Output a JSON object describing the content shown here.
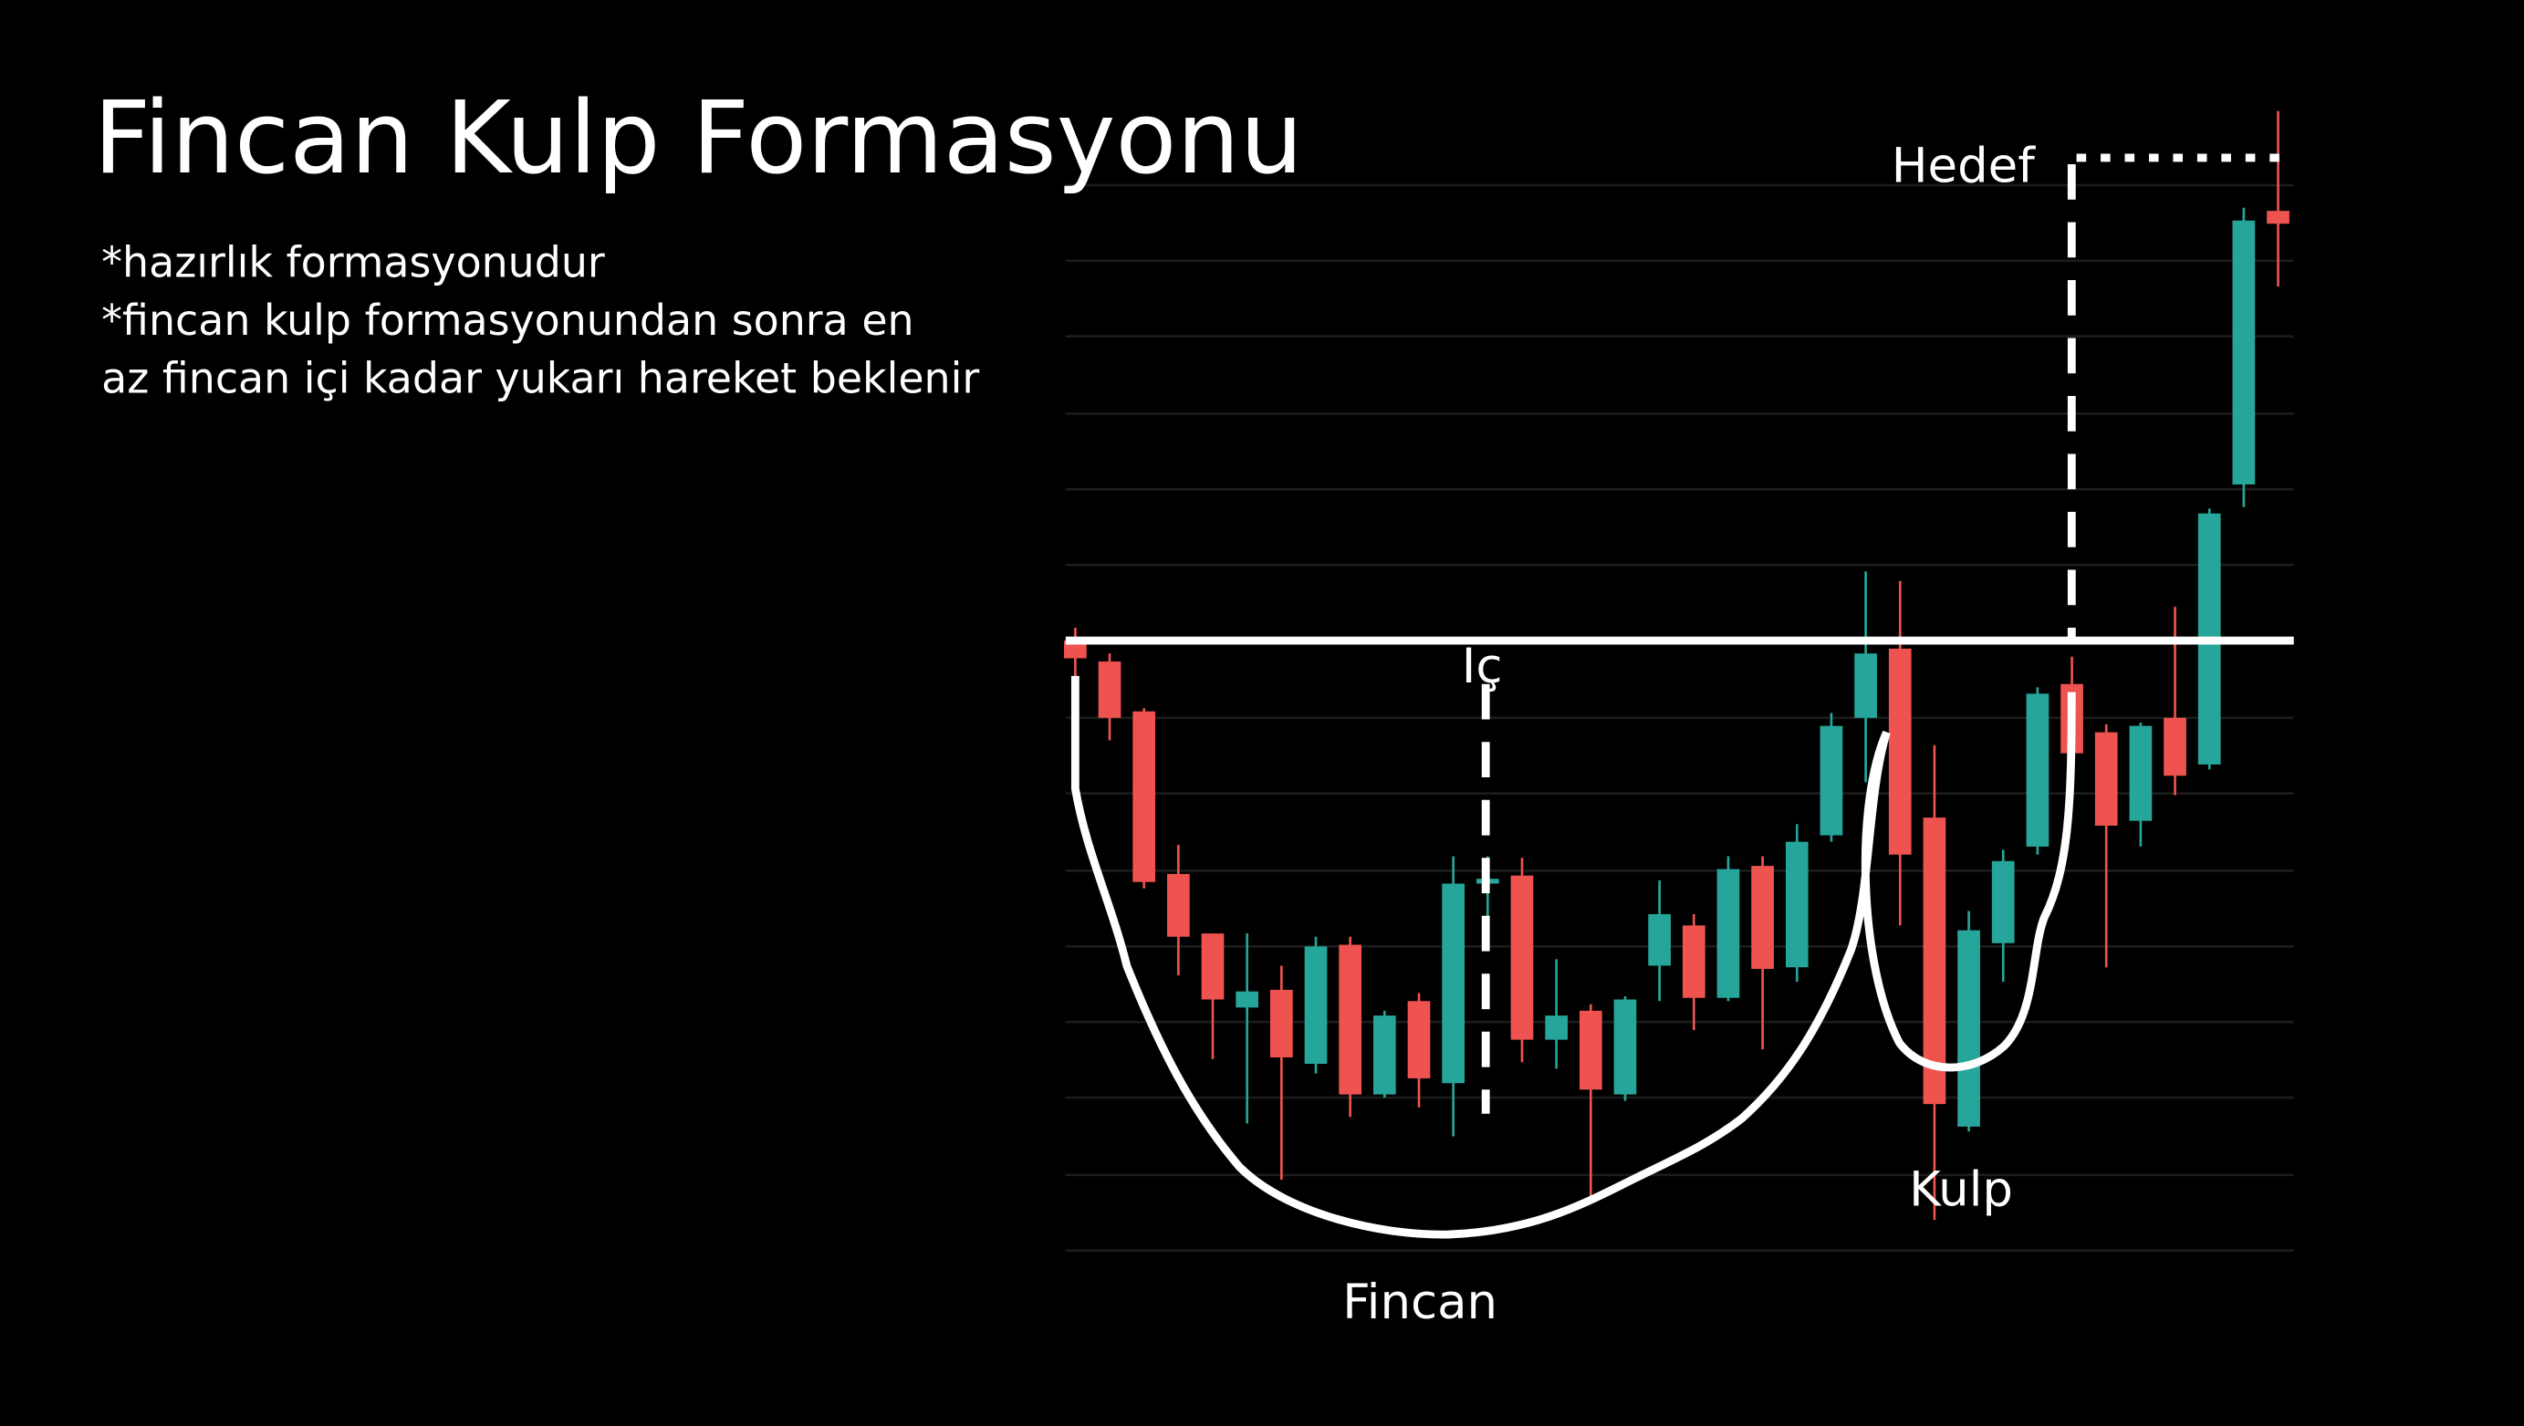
{
  "chart_data": {
    "type": "candlestick",
    "title": "Fincan Kulp Formasyonu",
    "notes": [
      "*hazırlık formasyonudur",
      "*fincan kulp formasyonundan sonra en",
      "az fincan içi kadar yukarı hareket beklenir"
    ],
    "annotations": {
      "target": "Hedef",
      "inside": "İç",
      "handle": "Kulp",
      "cup": "Fincan"
    },
    "up_color": "#26a69a",
    "down_color": "#ef5350",
    "grid": true,
    "ylim": [
      0,
      710
    ],
    "yticks": [
      0,
      47,
      95,
      142,
      189,
      236,
      284,
      331,
      378,
      426,
      473,
      520,
      568,
      615,
      662
    ],
    "resistance": 379,
    "target_level": 679,
    "open": [
      379,
      366,
      335,
      234,
      197,
      151,
      162,
      116,
      190,
      97,
      155,
      104,
      228,
      233,
      131,
      149,
      97,
      177,
      202,
      157,
      239,
      176,
      258,
      331,
      374,
      269,
      77,
      191,
      251,
      352,
      322,
      267,
      331,
      302,
      476,
      646
    ],
    "high": [
      387,
      371,
      337,
      252,
      197,
      197,
      177,
      195,
      195,
      149,
      160,
      245,
      245,
      244,
      181,
      153,
      158,
      230,
      209,
      245,
      245,
      265,
      334,
      422,
      416,
      314,
      211,
      249,
      350,
      369,
      327,
      328,
      400,
      461,
      648,
      708
    ],
    "low": [
      309,
      317,
      225,
      171,
      119,
      79,
      44,
      110,
      83,
      95,
      89,
      71,
      197,
      117,
      113,
      33,
      93,
      155,
      137,
      155,
      125,
      167,
      254,
      291,
      202,
      19,
      74,
      167,
      246,
      307,
      176,
      251,
      283,
      299,
      462,
      599
    ],
    "close": [
      368,
      331,
      229,
      195,
      156,
      161,
      120,
      189,
      97,
      146,
      107,
      228,
      231,
      131,
      146,
      100,
      156,
      209,
      157,
      237,
      175,
      254,
      326,
      371,
      246,
      91,
      199,
      242,
      346,
      309,
      264,
      326,
      295,
      458,
      640,
      638
    ]
  }
}
